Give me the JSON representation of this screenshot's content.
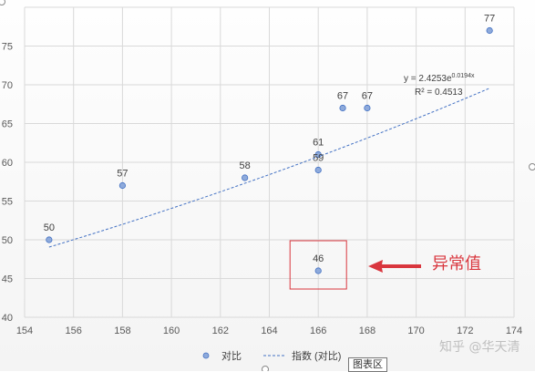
{
  "chart_data": {
    "type": "scatter",
    "xlim": [
      154,
      174
    ],
    "ylim": [
      40,
      80
    ],
    "x_ticks": [
      154,
      156,
      158,
      160,
      162,
      164,
      166,
      168,
      170,
      172,
      174
    ],
    "y_ticks": [
      40,
      45,
      50,
      55,
      60,
      65,
      70,
      75
    ],
    "y_tick_labels": [
      "40",
      "45",
      "50",
      "55",
      "60",
      "65",
      "70",
      "75"
    ],
    "grid": true,
    "series": [
      {
        "name": "对比",
        "points": [
          {
            "x": 155,
            "y": 50,
            "label": "50"
          },
          {
            "x": 158,
            "y": 57,
            "label": "57"
          },
          {
            "x": 163,
            "y": 58,
            "label": "58"
          },
          {
            "x": 166,
            "y": 59,
            "label": "59"
          },
          {
            "x": 166,
            "y": 61,
            "label": "61"
          },
          {
            "x": 166,
            "y": 46,
            "label": "46"
          },
          {
            "x": 167,
            "y": 67,
            "label": "67"
          },
          {
            "x": 168,
            "y": 67,
            "label": "67"
          },
          {
            "x": 173,
            "y": 77,
            "label": "77"
          }
        ],
        "marker_color": "#8eaadb",
        "marker_edge": "#4472c4"
      }
    ],
    "trendline": {
      "name": "指数 (对比)",
      "type": "exponential",
      "a": 2.4253,
      "b": 0.0194,
      "x_range": [
        155,
        173
      ],
      "color": "#4472c4",
      "equation_base": "y = 2.4253e",
      "equation_exp": "0.0194x",
      "r_squared": "R² = 0.4513"
    },
    "annotation": {
      "text": "异常值",
      "target": {
        "x": 166,
        "y": 46
      },
      "color": "#d9363e"
    },
    "legend": {
      "position": "bottom",
      "items": [
        "对比",
        "指数 (对比)"
      ]
    }
  },
  "ui": {
    "chart_area_tooltip": "图表区",
    "watermark": "知乎 @华天清"
  }
}
